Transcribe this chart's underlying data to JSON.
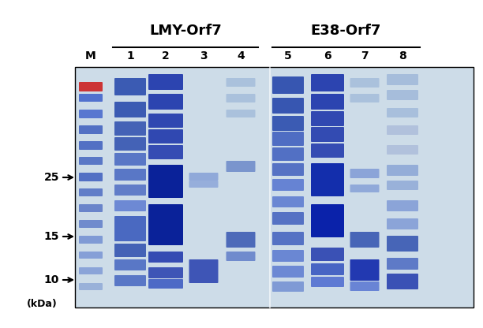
{
  "title_left": "LMY-Orf7",
  "title_right": "E38-Orf7",
  "lane_labels": [
    "M",
    "1",
    "2",
    "3",
    "4",
    "5",
    "6",
    "7",
    "8"
  ],
  "mw_labels": [
    "25",
    "15",
    "10"
  ],
  "mw_label_bottom": "(kDa)",
  "bg_color": "#d8e8f0",
  "gel_bg": "#c8dce8",
  "lane_colors_dark": "#1a3a9c",
  "lane_colors_mid": "#3a6abf",
  "lane_colors_light": "#7aaad8",
  "marker_red_color": "#cc2222",
  "fig_bg": "#ffffff"
}
